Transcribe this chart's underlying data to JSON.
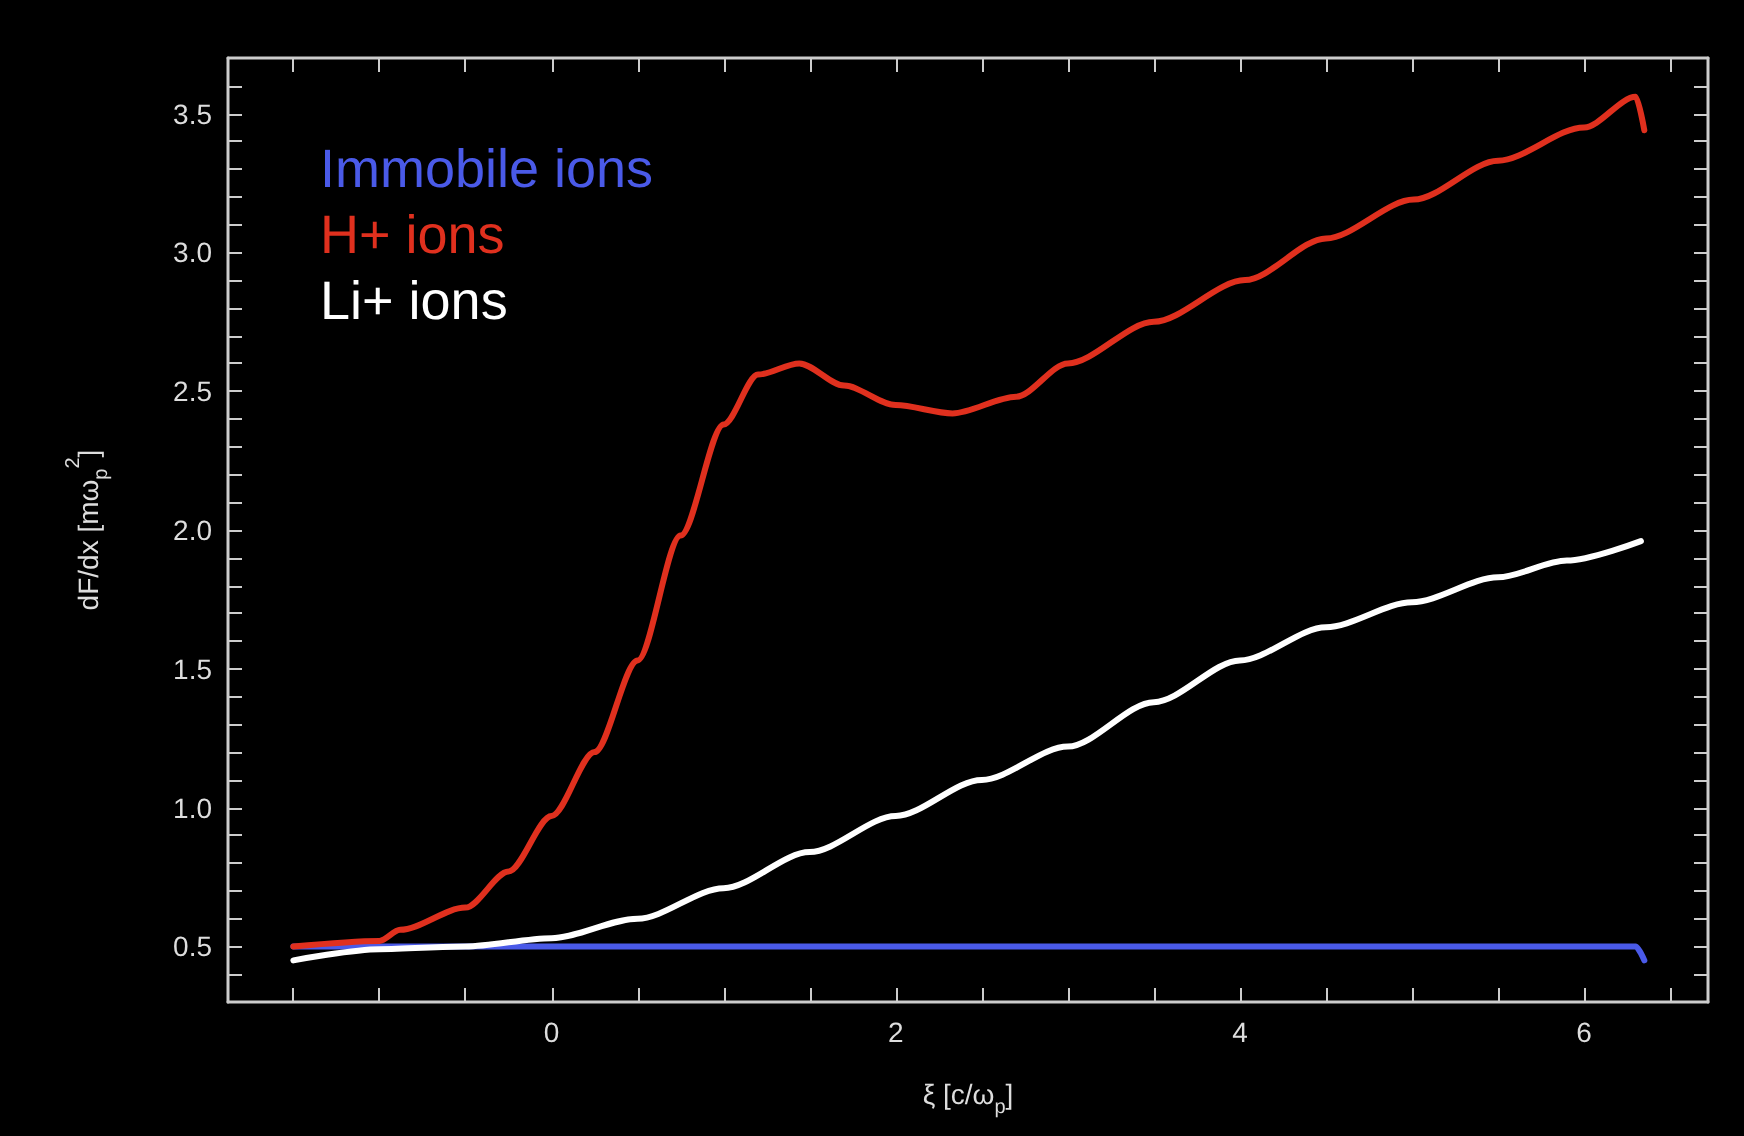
{
  "chart_data": {
    "type": "line",
    "xlabel": "ξ [c/ω$_{p}$]",
    "ylabel": "dF/dx [mω$_{p}$$^{2}$]",
    "xlim": [
      -1.88,
      6.72
    ],
    "xticks": [
      {
        "value": -1.5,
        "label": null
      },
      {
        "value": -1,
        "label": null
      },
      {
        "value": -0.5,
        "label": null
      },
      0,
      {
        "value": 0.5,
        "label": null
      },
      {
        "value": 1,
        "label": null
      },
      {
        "value": 1.5,
        "label": null
      },
      2,
      {
        "value": 2.5,
        "label": null
      },
      {
        "value": 3,
        "label": null
      },
      {
        "value": 3.5,
        "label": null
      },
      4,
      {
        "value": 4.5,
        "label": null
      },
      {
        "value": 5,
        "label": null
      },
      {
        "value": 5.5,
        "label": null
      },
      6,
      {
        "value": 6.5,
        "label": null
      }
    ],
    "ylim": [
      0.3,
      3.7
    ],
    "yticks": [
      {
        "value": 0.4,
        "label": null
      },
      {
        "value": 0.5,
        "label": "0.5"
      },
      {
        "value": 0.6,
        "label": null
      },
      {
        "value": 0.7,
        "label": null
      },
      {
        "value": 0.8,
        "label": null
      },
      {
        "value": 0.9,
        "label": null
      },
      {
        "value": 1,
        "label": "1.0"
      },
      {
        "value": 1.1,
        "label": null
      },
      {
        "value": 1.2,
        "label": null
      },
      {
        "value": 1.3,
        "label": null
      },
      {
        "value": 1.4,
        "label": null
      },
      {
        "value": 1.5,
        "label": "1.5"
      },
      {
        "value": 1.6,
        "label": null
      },
      {
        "value": 1.7,
        "label": null
      },
      {
        "value": 1.8,
        "label": null
      },
      {
        "value": 1.9,
        "label": null
      },
      {
        "value": 2,
        "label": "2.0"
      },
      {
        "value": 2.1,
        "label": null
      },
      {
        "value": 2.2,
        "label": null
      },
      {
        "value": 2.3,
        "label": null
      },
      {
        "value": 2.4,
        "label": null
      },
      {
        "value": 2.5,
        "label": "2.5"
      },
      {
        "value": 2.6,
        "label": null
      },
      {
        "value": 2.7,
        "label": null
      },
      {
        "value": 2.8,
        "label": null
      },
      {
        "value": 2.9,
        "label": null
      },
      {
        "value": 3,
        "label": "3.0"
      },
      {
        "value": 3.1,
        "label": null
      },
      {
        "value": 3.2,
        "label": null
      },
      {
        "value": 3.3,
        "label": null
      },
      {
        "value": 3.4,
        "label": null
      },
      {
        "value": 3.5,
        "label": "3.5"
      },
      {
        "value": 3.6,
        "label": null
      }
    ],
    "grid": false,
    "legend": "top left",
    "marker": "none",
    "line_style": "solid",
    "series": [
      {
        "name": "Immobile ions",
        "color": "#4a5ae8",
        "x": [
          -1.5,
          0,
          2,
          4,
          6,
          6.3,
          6.35
        ],
        "values": [
          0.5,
          0.5,
          0.5,
          0.5,
          0.5,
          0.5,
          0.45
        ]
      },
      {
        "name": "H+ ions",
        "color": "#e0301e",
        "x": [
          -1.5,
          -1,
          -0.88,
          -0.5,
          -0.25,
          0,
          0.25,
          0.5,
          0.75,
          1,
          1.2,
          1.44,
          1.7,
          2,
          2.33,
          2.7,
          3,
          3.5,
          4.03,
          4.5,
          5.01,
          5.5,
          6,
          6.3,
          6.35
        ],
        "values": [
          0.5,
          0.52,
          0.56,
          0.64,
          0.77,
          0.97,
          1.2,
          1.53,
          1.98,
          2.38,
          2.56,
          2.6,
          2.52,
          2.45,
          2.42,
          2.48,
          2.6,
          2.75,
          2.9,
          3.05,
          3.19,
          3.33,
          3.45,
          3.56,
          3.44
        ]
      },
      {
        "name": "Li+ ions",
        "color": "#ffffff",
        "x": [
          -1.5,
          -1,
          -0.5,
          0,
          0.5,
          1,
          1.5,
          2,
          2.5,
          3,
          3.5,
          4,
          4.5,
          5,
          5.5,
          5.9,
          6.33
        ],
        "values": [
          0.45,
          0.49,
          0.5,
          0.53,
          0.6,
          0.71,
          0.84,
          0.97,
          1.1,
          1.22,
          1.38,
          1.53,
          1.65,
          1.74,
          1.83,
          1.89,
          1.96
        ]
      }
    ]
  }
}
